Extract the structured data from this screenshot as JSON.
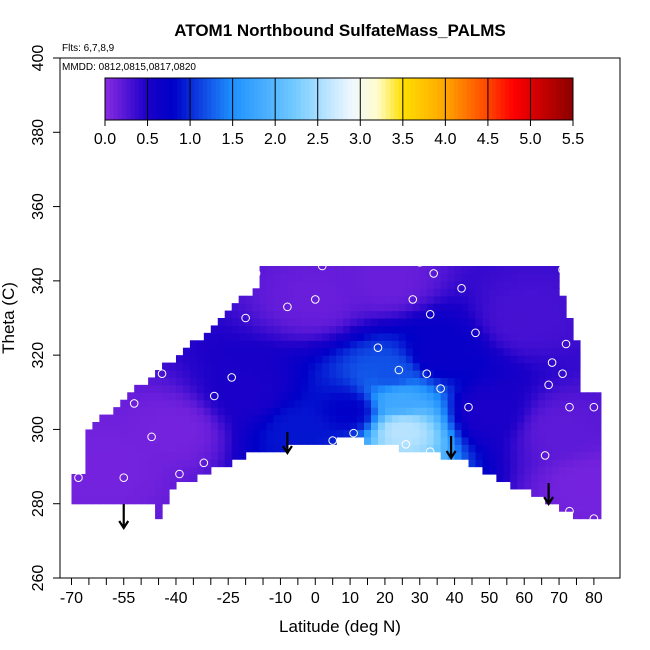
{
  "chart_data": {
    "type": "heatmap",
    "title": "ATOM1 Northbound SulfateMass_PALMS",
    "flights_label": "Flts: 6,7,8,9",
    "dates_label": "MMDD: 0812,0815,0817,0820",
    "xlabel": "Latitude (deg N)",
    "ylabel": "Theta (C)",
    "xlim": [
      -70,
      80
    ],
    "ylim": [
      260,
      400
    ],
    "x_ticks": [
      -70,
      -55,
      -40,
      -25,
      -10,
      0,
      10,
      20,
      30,
      40,
      50,
      60,
      70,
      80
    ],
    "y_ticks": [
      260,
      280,
      300,
      320,
      340,
      360,
      380,
      400
    ],
    "colorbar": {
      "min": 0.0,
      "max": 5.5,
      "ticks": [
        "0.0",
        "0.5",
        "1.0",
        "1.5",
        "2.0",
        "2.5",
        "3.0",
        "3.5",
        "4.0",
        "4.5",
        "5.0",
        "5.5"
      ],
      "stops": [
        {
          "v": 0.0,
          "color": "#8a2be2"
        },
        {
          "v": 0.5,
          "color": "#1a00c8"
        },
        {
          "v": 0.8,
          "color": "#0000c8"
        },
        {
          "v": 1.5,
          "color": "#1e90ff"
        },
        {
          "v": 2.2,
          "color": "#6ec8ff"
        },
        {
          "v": 2.9,
          "color": "#f0f8ff"
        },
        {
          "v": 3.2,
          "color": "#fffccc"
        },
        {
          "v": 3.5,
          "color": "#ffe000"
        },
        {
          "v": 4.0,
          "color": "#ffa500"
        },
        {
          "v": 4.5,
          "color": "#ff4500"
        },
        {
          "v": 4.8,
          "color": "#ff0000"
        },
        {
          "v": 5.5,
          "color": "#8b0000"
        }
      ]
    },
    "field": [
      {
        "lat": 0,
        "theta": 335,
        "value": 0.15
      },
      {
        "lat": 20,
        "theta": 340,
        "value": 0.15
      },
      {
        "lat": -40,
        "theta": 300,
        "value": 0.1
      },
      {
        "lat": -60,
        "theta": 290,
        "value": 0.1
      },
      {
        "lat": -20,
        "theta": 310,
        "value": 0.5
      },
      {
        "lat": -5,
        "theta": 300,
        "value": 0.9
      },
      {
        "lat": 10,
        "theta": 305,
        "value": 0.8
      },
      {
        "lat": 25,
        "theta": 300,
        "value": 2.6
      },
      {
        "lat": 24,
        "theta": 308,
        "value": 1.8
      },
      {
        "lat": 22,
        "theta": 315,
        "value": 1.2
      },
      {
        "lat": 35,
        "theta": 320,
        "value": 0.7
      },
      {
        "lat": 50,
        "theta": 305,
        "value": 0.5
      },
      {
        "lat": 60,
        "theta": 330,
        "value": 0.3
      },
      {
        "lat": 70,
        "theta": 300,
        "value": 0.2
      },
      {
        "lat": 78,
        "theta": 285,
        "value": 0.1
      }
    ],
    "samples": [
      [
        -68,
        287
      ],
      [
        -55,
        287
      ],
      [
        -52,
        307
      ],
      [
        -47,
        298
      ],
      [
        -44,
        315
      ],
      [
        -39,
        288
      ],
      [
        -32,
        291
      ],
      [
        -29,
        309
      ],
      [
        -24,
        314
      ],
      [
        -20,
        330
      ],
      [
        -17,
        342
      ],
      [
        -8,
        333
      ],
      [
        0,
        335
      ],
      [
        2,
        344
      ],
      [
        5,
        297
      ],
      [
        11,
        299
      ],
      [
        18,
        322
      ],
      [
        21,
        347
      ],
      [
        24,
        316
      ],
      [
        26,
        296
      ],
      [
        28,
        335
      ],
      [
        30,
        345
      ],
      [
        32,
        315
      ],
      [
        33,
        294
      ],
      [
        33,
        331
      ],
      [
        34,
        342
      ],
      [
        36,
        311
      ],
      [
        42,
        338
      ],
      [
        44,
        306
      ],
      [
        46,
        326
      ],
      [
        66,
        293
      ],
      [
        67,
        312
      ],
      [
        68,
        318
      ],
      [
        71,
        343
      ],
      [
        71,
        315
      ],
      [
        72,
        323
      ],
      [
        73,
        306
      ],
      [
        73,
        278
      ],
      [
        80,
        276
      ],
      [
        80,
        306
      ]
    ],
    "flight_arrows": [
      -55,
      -8,
      39,
      67
    ]
  }
}
